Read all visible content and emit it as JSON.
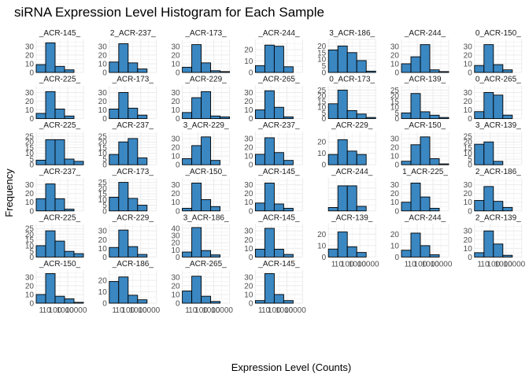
{
  "chart_data": {
    "type": "bar",
    "title": "siRNA Expression Level Histogram for Each Sample",
    "xlabel": "Expression Level (Counts)",
    "ylabel": "Frequency",
    "x_tick_labels": [
      "1",
      "10",
      "100",
      "1000",
      "10000"
    ],
    "x_scale": "log10",
    "grid": true,
    "bar_color": "#3a87c2",
    "bar_edge_color": "#000000",
    "grid_color": "#ebebeb",
    "panels": [
      {
        "label": "_ACR-145_",
        "yticks": [
          0,
          10,
          20,
          30
        ],
        "ylim": [
          0,
          38
        ],
        "values": [
          9,
          34,
          7,
          3,
          0
        ]
      },
      {
        "label": "2_ACR-237_",
        "yticks": [
          0,
          10,
          20,
          30
        ],
        "ylim": [
          0,
          38
        ],
        "values": [
          12,
          33,
          11,
          4,
          0
        ]
      },
      {
        "label": "_ACR-173_",
        "yticks": [
          0,
          10,
          20,
          30
        ],
        "ylim": [
          0,
          38
        ],
        "values": [
          6,
          32,
          11,
          2,
          1
        ]
      },
      {
        "label": "_ACR-244_",
        "yticks": [
          0,
          10,
          20
        ],
        "ylim": [
          0,
          29
        ],
        "values": [
          6,
          24,
          23,
          5,
          0
        ]
      },
      {
        "label": "3_ACR-186_",
        "yticks": [
          0,
          5,
          10,
          15,
          20
        ],
        "ylim": [
          0,
          25
        ],
        "values": [
          17,
          20,
          15,
          9,
          1
        ]
      },
      {
        "label": "_ACR-244_",
        "yticks": [
          0,
          10,
          20,
          30
        ],
        "ylim": [
          0,
          38
        ],
        "values": [
          10,
          18,
          32,
          3,
          1
        ]
      },
      {
        "label": "0_ACR-150_",
        "yticks": [
          0,
          10,
          20,
          30
        ],
        "ylim": [
          0,
          38
        ],
        "values": [
          8,
          32,
          9,
          3,
          0
        ]
      },
      {
        "label": "_ACR-225_",
        "yticks": [
          0,
          10,
          20,
          30
        ],
        "ylim": [
          0,
          38
        ],
        "values": [
          6,
          31,
          11,
          3,
          0
        ]
      },
      {
        "label": "_ACR-173_",
        "yticks": [
          0,
          10,
          20,
          30
        ],
        "ylim": [
          0,
          38
        ],
        "values": [
          11,
          30,
          12,
          4,
          0
        ]
      },
      {
        "label": "_ACR-229_",
        "yticks": [
          0,
          10,
          20,
          30
        ],
        "ylim": [
          0,
          38
        ],
        "values": [
          7,
          24,
          31,
          3,
          2
        ]
      },
      {
        "label": "_ACR-265_",
        "yticks": [
          0,
          10,
          20,
          30
        ],
        "ylim": [
          0,
          38
        ],
        "values": [
          10,
          32,
          13,
          2,
          0
        ]
      },
      {
        "label": "0_ACR-173_",
        "yticks": [
          0,
          5,
          10,
          15,
          20,
          25
        ],
        "ylim": [
          0,
          29
        ],
        "values": [
          13,
          25,
          7,
          4,
          1
        ]
      },
      {
        "label": "_ACR-139_",
        "yticks": [
          0,
          5,
          10,
          15,
          20,
          25
        ],
        "ylim": [
          0,
          29
        ],
        "values": [
          5,
          22,
          6,
          3,
          1
        ]
      },
      {
        "label": "0_ACR-265_",
        "yticks": [
          0,
          10,
          20,
          30
        ],
        "ylim": [
          0,
          38
        ],
        "values": [
          8,
          30,
          27,
          4,
          0
        ]
      },
      {
        "label": "_ACR-225_",
        "yticks": [
          0,
          5,
          10,
          15,
          20,
          25
        ],
        "ylim": [
          0,
          29
        ],
        "values": [
          4,
          22,
          22,
          5,
          3
        ]
      },
      {
        "label": "_ACR-237_",
        "yticks": [
          0,
          5,
          10,
          15,
          20,
          25
        ],
        "ylim": [
          0,
          29
        ],
        "values": [
          9,
          20,
          23,
          6,
          0
        ]
      },
      {
        "label": "3_ACR-229_",
        "yticks": [
          0,
          10,
          20,
          30
        ],
        "ylim": [
          0,
          38
        ],
        "values": [
          7,
          22,
          32,
          5,
          0
        ]
      },
      {
        "label": "_ACR-237_",
        "yticks": [
          0,
          10,
          20,
          30
        ],
        "ylim": [
          0,
          38
        ],
        "values": [
          12,
          31,
          14,
          5,
          0
        ]
      },
      {
        "label": "_ACR-229_",
        "yticks": [
          0,
          10,
          20
        ],
        "ylim": [
          0,
          29
        ],
        "values": [
          9,
          22,
          12,
          9,
          0
        ]
      },
      {
        "label": "_ACR-150_",
        "yticks": [
          0,
          10,
          20,
          30
        ],
        "ylim": [
          0,
          38
        ],
        "values": [
          4,
          23,
          32,
          7,
          1
        ]
      },
      {
        "label": "3_ACR-139_",
        "yticks": [
          0,
          5,
          10,
          15,
          20,
          25
        ],
        "ylim": [
          0,
          29
        ],
        "values": [
          18,
          20,
          3,
          0,
          0
        ]
      },
      {
        "label": "_ACR-237_",
        "yticks": [
          0,
          10,
          20,
          30
        ],
        "ylim": [
          0,
          38
        ],
        "values": [
          14,
          31,
          14,
          2,
          0
        ]
      },
      {
        "label": "_ACR-173_",
        "yticks": [
          0,
          5,
          10,
          15,
          20,
          25
        ],
        "ylim": [
          0,
          29
        ],
        "values": [
          12,
          25,
          11,
          5,
          0
        ]
      },
      {
        "label": "_ACR-150_",
        "yticks": [
          0,
          10,
          20,
          30
        ],
        "ylim": [
          0,
          38
        ],
        "values": [
          3,
          32,
          13,
          5,
          0
        ]
      },
      {
        "label": "_ACR-145_",
        "yticks": [
          0,
          10,
          20,
          30
        ],
        "ylim": [
          0,
          38
        ],
        "values": [
          9,
          32,
          8,
          3,
          0
        ]
      },
      {
        "label": "_ACR-244_",
        "yticks": [],
        "ylim": [
          0,
          29
        ],
        "values": [
          3,
          22,
          22,
          4,
          0
        ]
      },
      {
        "label": "1_ACR-225_",
        "yticks": [
          0,
          10,
          20,
          30
        ],
        "ylim": [
          0,
          38
        ],
        "values": [
          10,
          32,
          16,
          3,
          0
        ]
      },
      {
        "label": "2_ACR-186_",
        "yticks": [
          0,
          10,
          20,
          30
        ],
        "ylim": [
          0,
          38
        ],
        "values": [
          12,
          28,
          11,
          4,
          0
        ]
      },
      {
        "label": "_ACR-225_",
        "yticks": [
          0,
          5,
          10,
          15,
          20,
          25
        ],
        "ylim": [
          0,
          29
        ],
        "values": [
          10,
          23,
          14,
          5,
          3
        ]
      },
      {
        "label": "_ACR-229_",
        "yticks": [
          0,
          10,
          20,
          30
        ],
        "ylim": [
          0,
          38
        ],
        "values": [
          11,
          31,
          12,
          3,
          0
        ]
      },
      {
        "label": "3_ACR-186_",
        "yticks": [
          0,
          10,
          20,
          30,
          40
        ],
        "ylim": [
          0,
          46
        ],
        "values": [
          7,
          41,
          9,
          3,
          0
        ]
      },
      {
        "label": "_ACR-145_",
        "yticks": [
          0,
          10,
          20,
          30
        ],
        "ylim": [
          0,
          38
        ],
        "values": [
          9,
          33,
          9,
          3,
          0
        ]
      },
      {
        "label": "_ACR-139_",
        "yticks": [
          0,
          10,
          20
        ],
        "ylim": [
          0,
          29
        ],
        "values": [
          7,
          22,
          9,
          4,
          0
        ]
      },
      {
        "label": "_ACR-244_",
        "yticks": [
          0,
          10,
          20
        ],
        "ylim": [
          0,
          29
        ],
        "values": [
          6,
          21,
          10,
          2,
          0
        ]
      },
      {
        "label": "2_ACR-139_",
        "yticks": [
          0,
          10,
          20,
          30
        ],
        "ylim": [
          0,
          38
        ],
        "values": [
          5,
          30,
          15,
          2,
          0
        ]
      },
      {
        "label": "_ACR-150_",
        "yticks": [
          0,
          10,
          20,
          30
        ],
        "ylim": [
          0,
          38
        ],
        "values": [
          10,
          34,
          8,
          5,
          1
        ]
      },
      {
        "label": "_ACR-186_",
        "yticks": [
          0,
          10,
          20
        ],
        "ylim": [
          0,
          29
        ],
        "values": [
          19,
          23,
          7,
          3,
          0
        ]
      },
      {
        "label": "_ACR-265_",
        "yticks": [
          0,
          10,
          20,
          30
        ],
        "ylim": [
          0,
          38
        ],
        "values": [
          14,
          31,
          8,
          2,
          0
        ]
      },
      {
        "label": "_ACR-145_",
        "yticks": [
          0,
          10,
          20,
          30
        ],
        "ylim": [
          0,
          38
        ],
        "values": [
          3,
          34,
          10,
          3,
          0
        ]
      }
    ]
  }
}
